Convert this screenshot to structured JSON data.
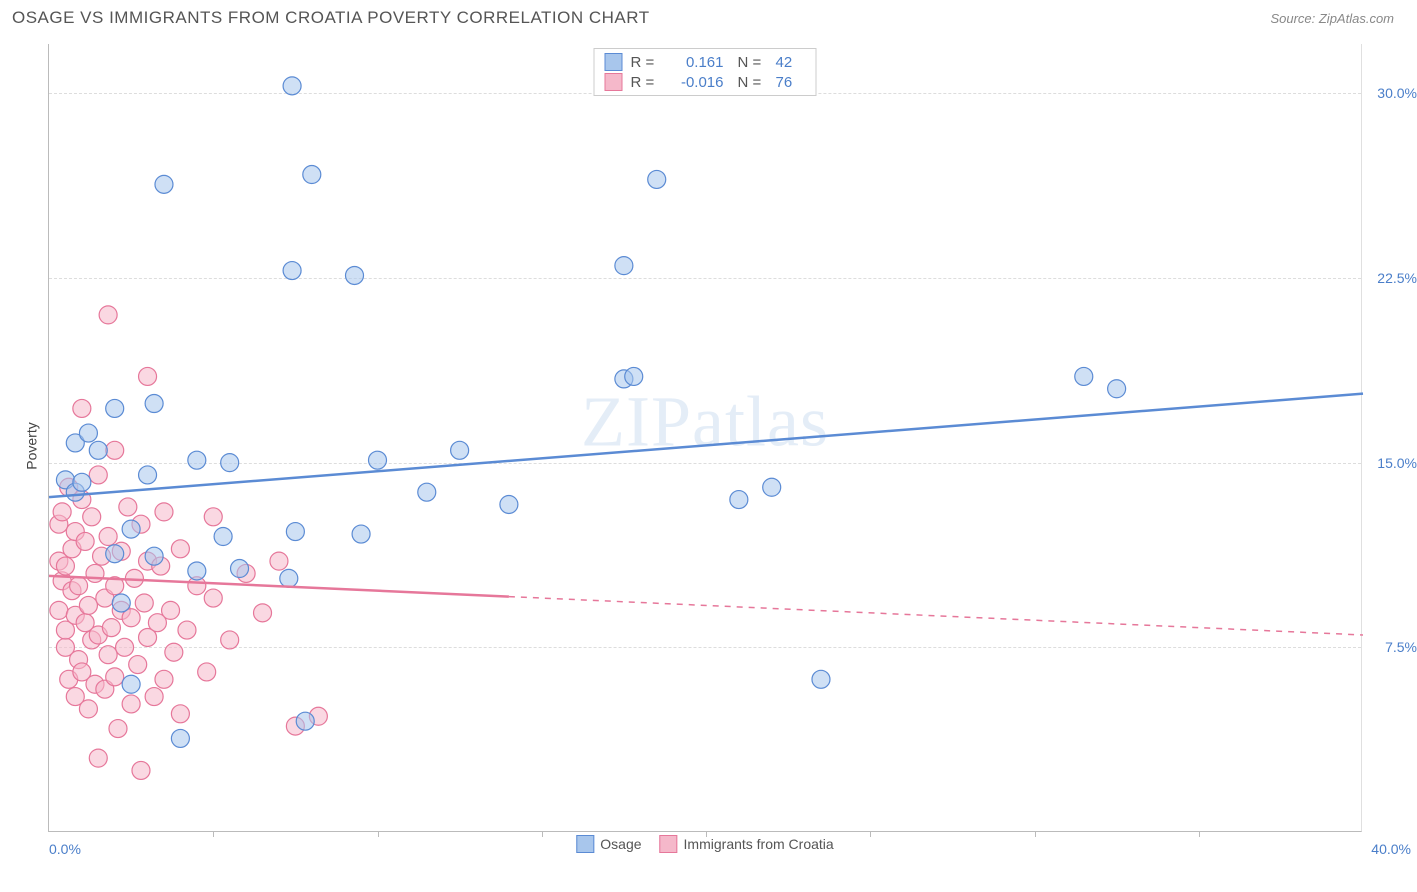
{
  "title": "OSAGE VS IMMIGRANTS FROM CROATIA POVERTY CORRELATION CHART",
  "source": "Source: ZipAtlas.com",
  "watermark": "ZIPatlas",
  "ylabel": "Poverty",
  "chart": {
    "type": "scatter",
    "background_color": "#ffffff",
    "grid_color": "#dddddd",
    "axis_color": "#bbbbbb",
    "tick_label_color": "#4a7ec9",
    "x": {
      "min": 0,
      "max": 40,
      "min_label": "0.0%",
      "max_label": "40.0%",
      "tick_step": 5
    },
    "y": {
      "min": 0,
      "max": 32,
      "ticks": [
        7.5,
        15.0,
        22.5,
        30.0
      ],
      "tick_labels": [
        "7.5%",
        "15.0%",
        "22.5%",
        "30.0%"
      ]
    },
    "marker_radius": 9,
    "marker_stroke_width": 1.2,
    "trend_line_width": 2.5,
    "series": [
      {
        "name": "Osage",
        "fill_color": "#a8c6ec",
        "stroke_color": "#5b8bd4",
        "fill_opacity": 0.55,
        "R": "0.161",
        "N": "42",
        "trend": {
          "x1": 0,
          "y1": 13.6,
          "x2": 40,
          "y2": 17.8,
          "solid_until_x": 40
        },
        "points": [
          [
            0.5,
            14.3
          ],
          [
            0.8,
            13.8
          ],
          [
            0.8,
            15.8
          ],
          [
            1.0,
            14.2
          ],
          [
            1.2,
            16.2
          ],
          [
            1.5,
            15.5
          ],
          [
            2.0,
            17.2
          ],
          [
            2.0,
            11.3
          ],
          [
            2.2,
            9.3
          ],
          [
            2.5,
            12.3
          ],
          [
            2.5,
            6.0
          ],
          [
            3.0,
            14.5
          ],
          [
            3.2,
            11.2
          ],
          [
            3.2,
            17.4
          ],
          [
            3.5,
            26.3
          ],
          [
            4.0,
            3.8
          ],
          [
            4.5,
            15.1
          ],
          [
            4.5,
            10.6
          ],
          [
            5.3,
            12.0
          ],
          [
            5.5,
            15.0
          ],
          [
            5.8,
            10.7
          ],
          [
            7.3,
            10.3
          ],
          [
            7.4,
            30.3
          ],
          [
            7.4,
            22.8
          ],
          [
            7.5,
            12.2
          ],
          [
            7.8,
            4.5
          ],
          [
            8.0,
            26.7
          ],
          [
            9.3,
            22.6
          ],
          [
            9.5,
            12.1
          ],
          [
            10.0,
            15.1
          ],
          [
            11.5,
            13.8
          ],
          [
            12.5,
            15.5
          ],
          [
            14.0,
            13.3
          ],
          [
            17.5,
            23.0
          ],
          [
            17.5,
            18.4
          ],
          [
            17.8,
            18.5
          ],
          [
            18.5,
            26.5
          ],
          [
            21.0,
            13.5
          ],
          [
            22.0,
            14.0
          ],
          [
            23.5,
            6.2
          ],
          [
            31.5,
            18.5
          ],
          [
            32.5,
            18.0
          ]
        ]
      },
      {
        "name": "Immigrants from Croatia",
        "fill_color": "#f5b8ca",
        "stroke_color": "#e6779a",
        "fill_opacity": 0.55,
        "R": "-0.016",
        "N": "76",
        "trend": {
          "x1": 0,
          "y1": 10.4,
          "x2": 40,
          "y2": 8.0,
          "solid_until_x": 14
        },
        "points": [
          [
            0.3,
            11.0
          ],
          [
            0.3,
            12.5
          ],
          [
            0.3,
            9.0
          ],
          [
            0.4,
            10.2
          ],
          [
            0.4,
            13.0
          ],
          [
            0.5,
            7.5
          ],
          [
            0.5,
            8.2
          ],
          [
            0.5,
            10.8
          ],
          [
            0.6,
            14.0
          ],
          [
            0.6,
            6.2
          ],
          [
            0.7,
            9.8
          ],
          [
            0.7,
            11.5
          ],
          [
            0.8,
            5.5
          ],
          [
            0.8,
            8.8
          ],
          [
            0.8,
            12.2
          ],
          [
            0.9,
            7.0
          ],
          [
            0.9,
            10.0
          ],
          [
            1.0,
            6.5
          ],
          [
            1.0,
            13.5
          ],
          [
            1.0,
            17.2
          ],
          [
            1.1,
            8.5
          ],
          [
            1.1,
            11.8
          ],
          [
            1.2,
            5.0
          ],
          [
            1.2,
            9.2
          ],
          [
            1.3,
            7.8
          ],
          [
            1.3,
            12.8
          ],
          [
            1.4,
            6.0
          ],
          [
            1.4,
            10.5
          ],
          [
            1.5,
            8.0
          ],
          [
            1.5,
            14.5
          ],
          [
            1.5,
            3.0
          ],
          [
            1.6,
            11.2
          ],
          [
            1.7,
            9.5
          ],
          [
            1.7,
            5.8
          ],
          [
            1.8,
            7.2
          ],
          [
            1.8,
            12.0
          ],
          [
            1.8,
            21.0
          ],
          [
            1.9,
            8.3
          ],
          [
            2.0,
            10.0
          ],
          [
            2.0,
            6.3
          ],
          [
            2.0,
            15.5
          ],
          [
            2.1,
            4.2
          ],
          [
            2.2,
            9.0
          ],
          [
            2.2,
            11.4
          ],
          [
            2.3,
            7.5
          ],
          [
            2.4,
            13.2
          ],
          [
            2.5,
            5.2
          ],
          [
            2.5,
            8.7
          ],
          [
            2.6,
            10.3
          ],
          [
            2.7,
            6.8
          ],
          [
            2.8,
            12.5
          ],
          [
            2.8,
            2.5
          ],
          [
            2.9,
            9.3
          ],
          [
            3.0,
            7.9
          ],
          [
            3.0,
            11.0
          ],
          [
            3.0,
            18.5
          ],
          [
            3.2,
            5.5
          ],
          [
            3.3,
            8.5
          ],
          [
            3.4,
            10.8
          ],
          [
            3.5,
            6.2
          ],
          [
            3.5,
            13.0
          ],
          [
            3.7,
            9.0
          ],
          [
            3.8,
            7.3
          ],
          [
            4.0,
            11.5
          ],
          [
            4.0,
            4.8
          ],
          [
            4.2,
            8.2
          ],
          [
            4.5,
            10.0
          ],
          [
            4.8,
            6.5
          ],
          [
            5.0,
            9.5
          ],
          [
            5.0,
            12.8
          ],
          [
            5.5,
            7.8
          ],
          [
            6.0,
            10.5
          ],
          [
            6.5,
            8.9
          ],
          [
            7.0,
            11.0
          ],
          [
            7.5,
            4.3
          ],
          [
            8.2,
            4.7
          ]
        ]
      }
    ]
  },
  "legend_bottom": [
    {
      "label": "Osage",
      "fill": "#a8c6ec",
      "stroke": "#5b8bd4"
    },
    {
      "label": "Immigrants from Croatia",
      "fill": "#f5b8ca",
      "stroke": "#e6779a"
    }
  ]
}
